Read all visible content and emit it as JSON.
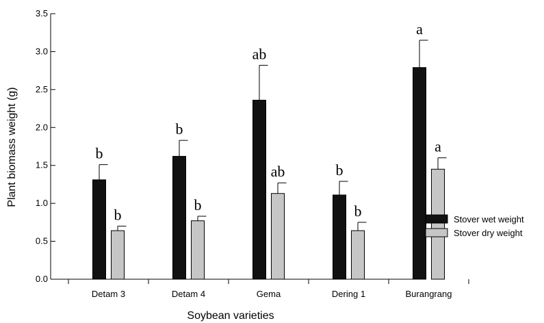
{
  "chart_data": {
    "type": "bar",
    "xlabel": "Soybean varieties",
    "ylabel": "Plant biomass weight (g)",
    "ylim": [
      0,
      3.5
    ],
    "yticks": [
      "0.0",
      "0.5",
      "1.0",
      "1.5",
      "2.0",
      "2.5",
      "3.0",
      "3.5"
    ],
    "categories": [
      "Detam 3",
      "Detam 4",
      "Gema",
      "Dering 1",
      "Burangrang"
    ],
    "series": [
      {
        "name": "Stover wet weight",
        "color": "#111111",
        "values": [
          1.31,
          1.62,
          2.36,
          1.11,
          2.79
        ],
        "errors": [
          0.2,
          0.21,
          0.46,
          0.18,
          0.36
        ],
        "letters": [
          "b",
          "b",
          "ab",
          "b",
          "a"
        ]
      },
      {
        "name": "Stover dry weight",
        "color": "#c6c6c6",
        "values": [
          0.64,
          0.77,
          1.13,
          0.64,
          1.45
        ],
        "errors": [
          0.06,
          0.06,
          0.14,
          0.11,
          0.15
        ],
        "letters": [
          "b",
          "b",
          "ab",
          "b",
          "a"
        ]
      }
    ],
    "grid": false,
    "legend": "right"
  }
}
